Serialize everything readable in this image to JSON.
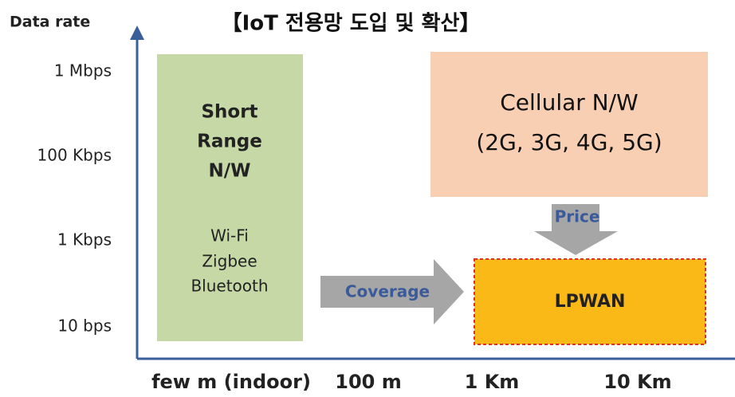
{
  "title": "【IoT 전용망 도입 및 확산】",
  "y_axis": {
    "label": "Data rate",
    "ticks": [
      "1 Mbps",
      "100 Kbps",
      "1 Kbps",
      "10 bps"
    ]
  },
  "x_axis": {
    "ticks": [
      "few m (indoor)",
      "100 m",
      "1 Km",
      "10 Km"
    ]
  },
  "short_range": {
    "title": [
      "Short",
      "Range",
      "N/W"
    ],
    "items": [
      "Wi-Fi",
      "Zigbee",
      "Bluetooth"
    ]
  },
  "cellular": {
    "lines": [
      "Cellular N/W",
      "(2G, 3G, 4G, 5G)"
    ]
  },
  "arrows": {
    "price": "Price",
    "coverage": "Coverage"
  },
  "lpwan": {
    "label": "LPWAN"
  }
}
